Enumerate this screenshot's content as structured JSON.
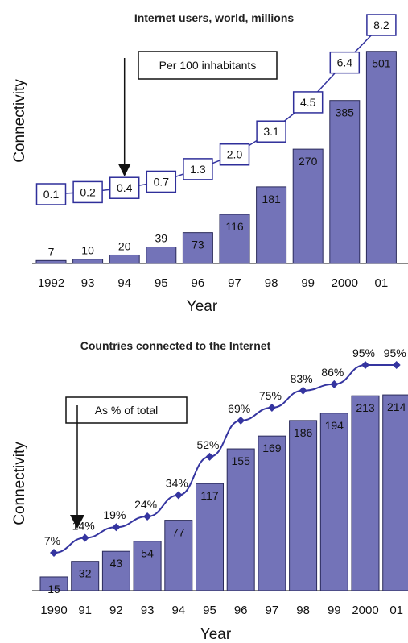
{
  "colors": {
    "bar": "#7373B8",
    "bar_stroke": "#2a2a5a",
    "line": "#3535A0",
    "box_stroke": "#2f2f9a",
    "text": "#111111"
  },
  "chart_data": [
    {
      "type": "bar",
      "title": "Internet users, world, millions",
      "xlabel": "Year",
      "ylabel": "Connectivity",
      "categories": [
        "1992",
        "93",
        "94",
        "95",
        "96",
        "97",
        "98",
        "99",
        "2000",
        "01"
      ],
      "series": [
        {
          "values": [
            7,
            10,
            20,
            39,
            73,
            116,
            181,
            270,
            385,
            501
          ]
        },
        {
          "name": "Per 100 inhabitants",
          "values": [
            0.1,
            0.2,
            0.4,
            0.7,
            1.3,
            2.0,
            3.1,
            4.5,
            6.4,
            8.2
          ],
          "labels": [
            "0.1",
            "0.2",
            "0.4",
            "0.7",
            "1.3",
            "2.0",
            "3.1",
            "4.5",
            "6.4",
            "8.2"
          ]
        }
      ],
      "annotation": {
        "text": "Per 100 inhabitants",
        "points_to": "94"
      },
      "ylim": [
        0,
        510
      ]
    },
    {
      "type": "bar",
      "title": "Countries connected to the Internet",
      "xlabel": "Year",
      "ylabel": "Connectivity",
      "categories": [
        "1990",
        "91",
        "92",
        "93",
        "94",
        "95",
        "96",
        "97",
        "98",
        "99",
        "2000",
        "01"
      ],
      "series": [
        {
          "values": [
            15,
            32,
            43,
            54,
            77,
            117,
            155,
            169,
            186,
            194,
            213,
            214
          ]
        },
        {
          "name": "As % of total",
          "values": [
            7,
            14,
            19,
            24,
            34,
            52,
            69,
            75,
            83,
            86,
            95,
            95
          ],
          "labels": [
            "7%",
            "14%",
            "19%",
            "24%",
            "34%",
            "52%",
            "69%",
            "75%",
            "83%",
            "86%",
            "95%",
            "95%"
          ]
        }
      ],
      "annotation": {
        "text": "As % of total",
        "points_to": "91"
      },
      "ylim": [
        0,
        222
      ]
    }
  ]
}
